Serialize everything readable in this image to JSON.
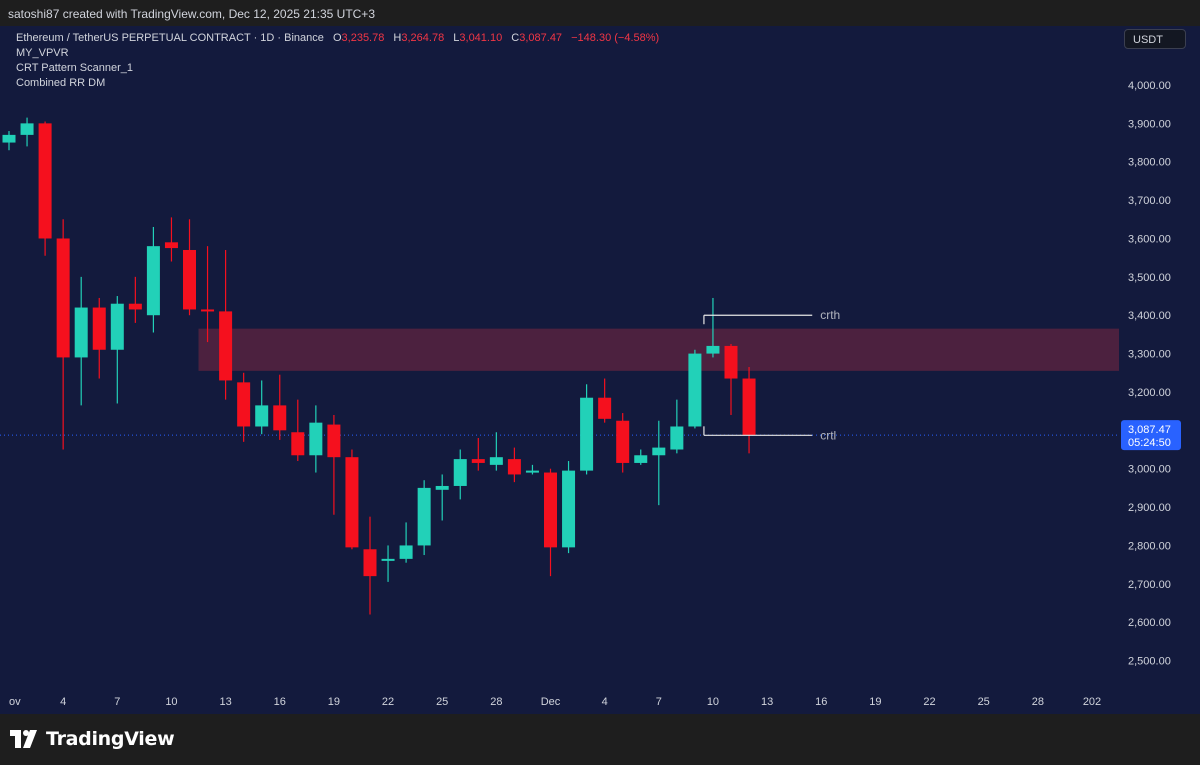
{
  "header": {
    "caption": "satoshi87 created with TradingView.com, Dec 12, 2025 21:35 UTC+3"
  },
  "legend": {
    "symbol": "Ethereum / TetherUS PERPETUAL CONTRACT · 1D · Binance",
    "open_label": "O",
    "open": "3,235.78",
    "high_label": "H",
    "high": "3,264.78",
    "low_label": "L",
    "low": "3,041.10",
    "close_label": "C",
    "close": "3,087.47",
    "change": "−148.30 (−4.58%)",
    "indicators": [
      "MY_VPVR",
      "CRT Pattern Scanner_1",
      "Combined RR DM"
    ]
  },
  "currency_button": "USDT",
  "price_tag": {
    "price": "3,087.47",
    "countdown": "05:24:50"
  },
  "brand": "TradingView",
  "colors": {
    "up": "#22d1b8",
    "down": "#f5101e",
    "background": "#131a3d",
    "zone": "#57233f",
    "price_tag": "#2962ff"
  },
  "chart_data": {
    "type": "candlestick",
    "y_axis": {
      "ticks": [
        2500,
        2600,
        2700,
        2800,
        2900,
        3000,
        3100,
        3200,
        3300,
        3400,
        3500,
        3600,
        3700,
        3800,
        3900,
        4000
      ],
      "tick_labels": [
        "2,500.00",
        "2,600.00",
        "2,700.00",
        "2,800.00",
        "2,900.00",
        "3,000.00",
        "3,100.00",
        "3,200.00",
        "3,300.00",
        "3,400.00",
        "3,500.00",
        "3,600.00",
        "3,700.00",
        "3,800.00",
        "3,900.00",
        "4,000.00"
      ],
      "position": "right"
    },
    "x_axis": {
      "labels": [
        {
          "label": "ov",
          "day": 0
        },
        {
          "label": "4",
          "day": 3
        },
        {
          "label": "7",
          "day": 6
        },
        {
          "label": "10",
          "day": 9
        },
        {
          "label": "13",
          "day": 12
        },
        {
          "label": "16",
          "day": 15
        },
        {
          "label": "19",
          "day": 18
        },
        {
          "label": "22",
          "day": 21
        },
        {
          "label": "25",
          "day": 24
        },
        {
          "label": "28",
          "day": 27
        },
        {
          "label": "Dec",
          "day": 30
        },
        {
          "label": "4",
          "day": 33
        },
        {
          "label": "7",
          "day": 36
        },
        {
          "label": "10",
          "day": 39
        },
        {
          "label": "13",
          "day": 42
        },
        {
          "label": "16",
          "day": 45
        },
        {
          "label": "19",
          "day": 48
        },
        {
          "label": "22",
          "day": 51
        },
        {
          "label": "25",
          "day": 54
        },
        {
          "label": "28",
          "day": 57
        },
        {
          "label": "202",
          "day": 60
        }
      ]
    },
    "candles": [
      {
        "day": 0,
        "o": 3850,
        "h": 3880,
        "l": 3830,
        "c": 3870
      },
      {
        "day": 1,
        "o": 3870,
        "h": 3915,
        "l": 3840,
        "c": 3900
      },
      {
        "day": 2,
        "o": 3900,
        "h": 3905,
        "l": 3555,
        "c": 3600
      },
      {
        "day": 3,
        "o": 3600,
        "h": 3650,
        "l": 3050,
        "c": 3290
      },
      {
        "day": 4,
        "o": 3290,
        "h": 3500,
        "l": 3165,
        "c": 3420
      },
      {
        "day": 5,
        "o": 3420,
        "h": 3445,
        "l": 3235,
        "c": 3310
      },
      {
        "day": 6,
        "o": 3310,
        "h": 3450,
        "l": 3170,
        "c": 3430
      },
      {
        "day": 7,
        "o": 3430,
        "h": 3500,
        "l": 3380,
        "c": 3415
      },
      {
        "day": 8,
        "o": 3400,
        "h": 3630,
        "l": 3355,
        "c": 3580
      },
      {
        "day": 9,
        "o": 3590,
        "h": 3655,
        "l": 3540,
        "c": 3575
      },
      {
        "day": 10,
        "o": 3570,
        "h": 3650,
        "l": 3400,
        "c": 3415
      },
      {
        "day": 11,
        "o": 3415,
        "h": 3580,
        "l": 3330,
        "c": 3410
      },
      {
        "day": 12,
        "o": 3410,
        "h": 3570,
        "l": 3180,
        "c": 3230
      },
      {
        "day": 13,
        "o": 3225,
        "h": 3250,
        "l": 3070,
        "c": 3110
      },
      {
        "day": 14,
        "o": 3110,
        "h": 3230,
        "l": 3090,
        "c": 3165
      },
      {
        "day": 15,
        "o": 3165,
        "h": 3245,
        "l": 3075,
        "c": 3100
      },
      {
        "day": 16,
        "o": 3095,
        "h": 3180,
        "l": 3020,
        "c": 3035
      },
      {
        "day": 17,
        "o": 3035,
        "h": 3165,
        "l": 2990,
        "c": 3120
      },
      {
        "day": 18,
        "o": 3115,
        "h": 3140,
        "l": 2880,
        "c": 3030
      },
      {
        "day": 19,
        "o": 3030,
        "h": 3050,
        "l": 2790,
        "c": 2795
      },
      {
        "day": 20,
        "o": 2790,
        "h": 2875,
        "l": 2620,
        "c": 2720
      },
      {
        "day": 21,
        "o": 2760,
        "h": 2800,
        "l": 2705,
        "c": 2765
      },
      {
        "day": 22,
        "o": 2765,
        "h": 2860,
        "l": 2755,
        "c": 2800
      },
      {
        "day": 23,
        "o": 2800,
        "h": 2970,
        "l": 2775,
        "c": 2950
      },
      {
        "day": 24,
        "o": 2945,
        "h": 2985,
        "l": 2865,
        "c": 2955
      },
      {
        "day": 25,
        "o": 2955,
        "h": 3050,
        "l": 2920,
        "c": 3025
      },
      {
        "day": 26,
        "o": 3025,
        "h": 3080,
        "l": 2995,
        "c": 3015
      },
      {
        "day": 27,
        "o": 3010,
        "h": 3095,
        "l": 2995,
        "c": 3030
      },
      {
        "day": 28,
        "o": 3025,
        "h": 3055,
        "l": 2965,
        "c": 2985
      },
      {
        "day": 29,
        "o": 2990,
        "h": 3010,
        "l": 2985,
        "c": 2995
      },
      {
        "day": 30,
        "o": 2990,
        "h": 3000,
        "l": 2720,
        "c": 2795
      },
      {
        "day": 31,
        "o": 2795,
        "h": 3020,
        "l": 2780,
        "c": 2995
      },
      {
        "day": 32,
        "o": 2995,
        "h": 3220,
        "l": 2985,
        "c": 3185
      },
      {
        "day": 33,
        "o": 3185,
        "h": 3235,
        "l": 3120,
        "c": 3130
      },
      {
        "day": 34,
        "o": 3125,
        "h": 3145,
        "l": 2990,
        "c": 3015
      },
      {
        "day": 35,
        "o": 3015,
        "h": 3050,
        "l": 3010,
        "c": 3035
      },
      {
        "day": 36,
        "o": 3035,
        "h": 3125,
        "l": 2905,
        "c": 3055
      },
      {
        "day": 37,
        "o": 3050,
        "h": 3180,
        "l": 3040,
        "c": 3110
      },
      {
        "day": 38,
        "o": 3110,
        "h": 3310,
        "l": 3105,
        "c": 3300
      },
      {
        "day": 39,
        "o": 3300,
        "h": 3445,
        "l": 3290,
        "c": 3320
      },
      {
        "day": 40,
        "o": 3320,
        "h": 3325,
        "l": 3140,
        "c": 3235
      },
      {
        "day": 41,
        "o": 3235,
        "h": 3265,
        "l": 3040,
        "c": 3087
      }
    ],
    "zone": {
      "from_day": 10.5,
      "to_day": 63,
      "low": 3255,
      "high": 3365
    },
    "levels": [
      {
        "label": "crth",
        "value": 3400,
        "from_day": 38.5,
        "to_day": 44.5
      },
      {
        "label": "crtl",
        "value": 3087,
        "from_day": 38.5,
        "to_day": 44.5
      }
    ],
    "last_price": 3087.47
  }
}
